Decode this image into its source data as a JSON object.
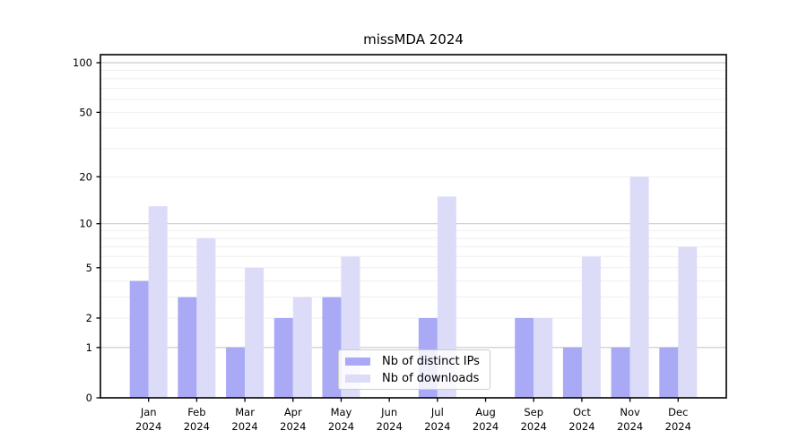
{
  "chart_data": {
    "type": "bar",
    "title": "missMDA 2024",
    "year_label": "2024",
    "categories": [
      "Jan",
      "Feb",
      "Mar",
      "Apr",
      "May",
      "Jun",
      "Jul",
      "Aug",
      "Sep",
      "Oct",
      "Nov",
      "Dec"
    ],
    "series": [
      {
        "name": "Nb of distinct IPs",
        "color": "#a9a9f5",
        "values": [
          4,
          3,
          1,
          2,
          3,
          0,
          2,
          0,
          2,
          1,
          1,
          1
        ]
      },
      {
        "name": "Nb of downloads",
        "color": "#dcdcf9",
        "values": [
          13,
          8,
          5,
          3,
          6,
          0,
          15,
          0,
          2,
          6,
          20,
          7
        ]
      }
    ],
    "yticks": [
      0,
      1,
      2,
      5,
      10,
      20,
      50,
      100
    ],
    "ylim": [
      0,
      100
    ],
    "yscale": "log1p",
    "grid": true,
    "major_gridline_values": [
      1,
      10,
      100
    ],
    "minor_gridline_values": [
      2,
      3,
      4,
      5,
      6,
      7,
      8,
      9,
      20,
      30,
      40,
      50,
      60,
      70,
      80,
      90
    ],
    "legend_position": "inside-bottom-center",
    "colors": {
      "axis": "#000000",
      "major_grid": "#c9c9c9",
      "minor_grid": "#efefef",
      "text": "#000000",
      "background": "#ffffff"
    }
  }
}
